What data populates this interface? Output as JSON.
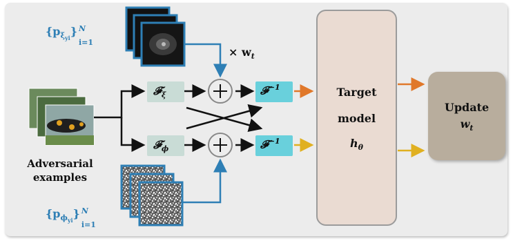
{
  "inputs": {
    "adversarial_label_line1": "Adversarial",
    "adversarial_label_line2": "examples"
  },
  "perturbation_sets": {
    "xi_label": "{p",
    "xi_sub": "ξ",
    "xi_subsub": "yi",
    "xi_range": "}",
    "xi_range_sup": "N",
    "xi_range_sub": "i=1",
    "phi_label": "{p",
    "phi_sub": "ϕ",
    "phi_subsub": "yi",
    "phi_range": "}",
    "phi_range_sup": "N",
    "phi_range_sub": "i=1"
  },
  "weight": {
    "label": "× w",
    "sub": "t"
  },
  "transforms": {
    "f_xi": "𝓕",
    "f_xi_sub": "ξ",
    "f_phi": "𝓕",
    "f_phi_sub": "ϕ",
    "f_inv": "𝓕",
    "f_inv_sup": "−1"
  },
  "operators": {
    "plus": "+"
  },
  "target_model": {
    "line1": "Target",
    "line2": "model",
    "symbol": "h",
    "symbol_sub": "θ"
  },
  "update": {
    "line1": "Update",
    "symbol": "w",
    "symbol_sub": "t"
  },
  "colors": {
    "blue_arrow": "#2e7fb5",
    "orange_arrow": "#e0782a",
    "yellow_arrow": "#e0b020",
    "op_box": "#c9dcd6",
    "inv_box": "#69d0dc",
    "target_fill": "#eadbd2",
    "update_fill": "#b8ad9d",
    "text_blue": "#2e7fb5"
  }
}
